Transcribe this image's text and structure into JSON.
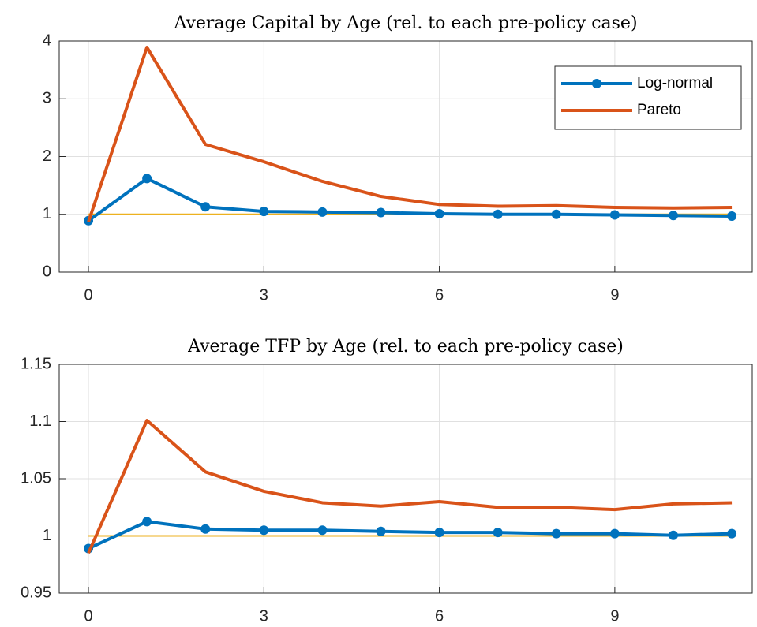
{
  "chart_data": [
    {
      "type": "line",
      "title": "Average Capital by Age (rel. to each pre-policy case)",
      "x": [
        0,
        1,
        2,
        3,
        4,
        5,
        6,
        7,
        8,
        9,
        10,
        11
      ],
      "series": [
        {
          "name": "Log-normal",
          "color": "#0072bd",
          "marker": "circle",
          "values": [
            0.89,
            1.62,
            1.13,
            1.05,
            1.04,
            1.03,
            1.01,
            1.0,
            1.0,
            0.99,
            0.98,
            0.97
          ]
        },
        {
          "name": "Pareto",
          "color": "#d95319",
          "values": [
            0.87,
            3.89,
            2.21,
            1.91,
            1.57,
            1.31,
            1.17,
            1.14,
            1.15,
            1.12,
            1.11,
            1.12
          ]
        }
      ],
      "reference_line": 1,
      "reference_color": "#edb120",
      "xlim": [
        -0.5,
        11.35
      ],
      "xticks": [
        0,
        3,
        6,
        9
      ],
      "ylim": [
        0,
        4
      ],
      "yticks": [
        0,
        1,
        2,
        3,
        4
      ],
      "grid": true,
      "legend": "northeast"
    },
    {
      "type": "line",
      "title": "Average TFP by Age (rel. to each pre-policy case)",
      "x": [
        0,
        1,
        2,
        3,
        4,
        5,
        6,
        7,
        8,
        9,
        10,
        11
      ],
      "series": [
        {
          "name": "Log-normal",
          "color": "#0072bd",
          "marker": "circle",
          "values": [
            0.989,
            1.0125,
            1.006,
            1.005,
            1.005,
            1.004,
            1.003,
            1.003,
            1.002,
            1.002,
            1.0005,
            1.002
          ]
        },
        {
          "name": "Pareto",
          "color": "#d95319",
          "values": [
            0.985,
            1.101,
            1.056,
            1.039,
            1.029,
            1.026,
            1.03,
            1.025,
            1.025,
            1.023,
            1.028,
            1.029
          ]
        }
      ],
      "reference_line": 1,
      "reference_color": "#edb120",
      "xlim": [
        -0.5,
        11.35
      ],
      "xticks": [
        0,
        3,
        6,
        9
      ],
      "ylim": [
        0.95,
        1.15
      ],
      "yticks": [
        0.95,
        1,
        1.05,
        1.1,
        1.15
      ],
      "grid": true
    }
  ]
}
